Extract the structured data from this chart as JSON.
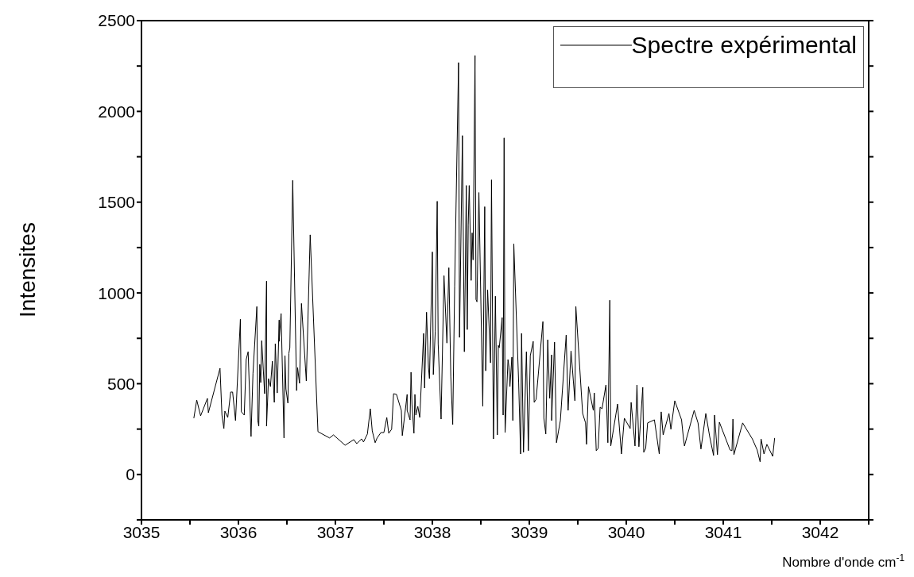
{
  "chart_data": {
    "type": "line",
    "xlabel": "Nombre d'onde cm$^{-1}$",
    "ylabel": "Intensites",
    "xlim": [
      3035,
      3042.5
    ],
    "xticks": [
      3035,
      {
        "value": 3035.5,
        "label": null
      },
      3036,
      {
        "value": 3036.5,
        "label": null
      },
      3037,
      {
        "value": 3037.5,
        "label": null
      },
      3038,
      {
        "value": 3038.5,
        "label": null
      },
      3039,
      {
        "value": 3039.5,
        "label": null
      },
      3040,
      {
        "value": 3040.5,
        "label": null
      },
      3041,
      {
        "value": 3041.5,
        "label": null
      },
      3042,
      {
        "value": 3042.5,
        "label": null
      }
    ],
    "ylim": [
      -250,
      2500
    ],
    "yticks": [
      {
        "value": -250,
        "label": null
      },
      0,
      {
        "value": 250,
        "label": null
      },
      500,
      {
        "value": 750,
        "label": null
      },
      1000,
      {
        "value": 1250,
        "label": null
      },
      1500,
      {
        "value": 1750,
        "label": null
      },
      2000,
      {
        "value": 2250,
        "label": null
      },
      2500
    ],
    "legend": "top right",
    "marker": "none",
    "line_style": "solid",
    "series": [
      {
        "name": "Spectre expérimental",
        "color": "#000000",
        "x": [
          3035.54,
          3035.57,
          3035.61,
          3035.68,
          3035.69,
          3035.81,
          3035.83,
          3035.85,
          3035.86,
          3035.89,
          3035.92,
          3035.94,
          3035.97,
          3036.02,
          3036.03,
          3036.06,
          3036.08,
          3036.1,
          3036.13,
          3036.15,
          3036.19,
          3036.2,
          3036.21,
          3036.22,
          3036.23,
          3036.24,
          3036.27,
          3036.29,
          3036.29,
          3036.31,
          3036.33,
          3036.35,
          3036.37,
          3036.38,
          3036.4,
          3036.42,
          3036.42,
          3036.44,
          3036.47,
          3036.48,
          3036.49,
          3036.51,
          3036.52,
          3036.53,
          3036.56,
          3036.6,
          3036.61,
          3036.63,
          3036.65,
          3036.7,
          3036.74,
          3036.82,
          3036.94,
          3036.98,
          3037.1,
          3037.19,
          3037.22,
          3037.27,
          3037.29,
          3037.33,
          3037.36,
          3037.38,
          3037.41,
          3037.43,
          3037.47,
          3037.5,
          3037.53,
          3037.55,
          3037.58,
          3037.6,
          3037.63,
          3037.68,
          3037.69,
          3037.74,
          3037.74,
          3037.77,
          3037.78,
          3037.79,
          3037.81,
          3037.82,
          3037.83,
          3037.85,
          3037.87,
          3037.91,
          3037.92,
          3037.94,
          3037.96,
          3037.97,
          3038,
          3038.01,
          3038.03,
          3038.05,
          3038.06,
          3038.09,
          3038.12,
          3038.15,
          3038.17,
          3038.19,
          3038.21,
          3038.23,
          3038.27,
          3038.28,
          3038.31,
          3038.33,
          3038.35,
          3038.36,
          3038.37,
          3038.38,
          3038.4,
          3038.41,
          3038.42,
          3038.44,
          3038.45,
          3038.46,
          3038.48,
          3038.52,
          3038.54,
          3038.55,
          3038.57,
          3038.6,
          3038.61,
          3038.63,
          3038.65,
          3038.67,
          3038.68,
          3038.69,
          3038.72,
          3038.73,
          3038.74,
          3038.75,
          3038.78,
          3038.79,
          3038.8,
          3038.82,
          3038.83,
          3038.84,
          3038.89,
          3038.91,
          3038.92,
          3038.94,
          3038.97,
          3038.99,
          3039.01,
          3039.04,
          3039.05,
          3039.07,
          3039.14,
          3039.15,
          3039.17,
          3039.19,
          3039.21,
          3039.23,
          3039.23,
          3039.26,
          3039.28,
          3039.32,
          3039.38,
          3039.4,
          3039.43,
          3039.47,
          3039.48,
          3039.55,
          3039.58,
          3039.59,
          3039.61,
          3039.66,
          3039.67,
          3039.69,
          3039.71,
          3039.73,
          3039.75,
          3039.79,
          3039.81,
          3039.83,
          3039.84,
          3039.91,
          3039.95,
          3039.98,
          3040.04,
          3040.05,
          3040.09,
          3040.11,
          3040.13,
          3040.17,
          3040.18,
          3040.2,
          3040.22,
          3040.29,
          3040.34,
          3040.36,
          3040.38,
          3040.44,
          3040.46,
          3040.5,
          3040.57,
          3040.59,
          3040.6,
          3040.7,
          3040.74,
          3040.77,
          3040.82,
          3040.86,
          3040.9,
          3040.91,
          3040.94,
          3040.96,
          3041.07,
          3041.09,
          3041.1,
          3041.11,
          3041.2,
          3041.3,
          3041.35,
          3041.38,
          3041.39,
          3041.42,
          3041.45,
          3041.51,
          3041.53
        ],
        "values": [
          310,
          410,
          323,
          419,
          340,
          585,
          327,
          253,
          349,
          314,
          454,
          454,
          297,
          855,
          345,
          327,
          633,
          676,
          209,
          558,
          925,
          297,
          266,
          606,
          506,
          737,
          445,
          1065,
          266,
          528,
          484,
          624,
          397,
          720,
          449,
          851,
          733,
          886,
          201,
          654,
          471,
          393,
          667,
          698,
          1620,
          462,
          589,
          502,
          942,
          515,
          1320,
          236,
          201,
          218,
          161,
          192,
          170,
          196,
          179,
          223,
          362,
          240,
          175,
          201,
          231,
          231,
          314,
          227,
          249,
          445,
          441,
          353,
          214,
          441,
          353,
          301,
          563,
          384,
          227,
          441,
          327,
          375,
          314,
          777,
          476,
          894,
          589,
          528,
          1226,
          550,
          790,
          1505,
          720,
          305,
          1095,
          724,
          1139,
          541,
          275,
          1038,
          2269,
          755,
          1867,
          676,
          1592,
          798,
          1374,
          1592,
          1069,
          1331,
          1182,
          2308,
          964,
          951,
          1553,
          375,
          1475,
          571,
          1017,
          615,
          1623,
          196,
          982,
          218,
          711,
          698,
          864,
          327,
          1854,
          231,
          633,
          593,
          484,
          646,
          297,
          1270,
          506,
          113,
          777,
          122,
          676,
          131,
          654,
          733,
          397,
          414,
          842,
          310,
          223,
          742,
          419,
          659,
          297,
          729,
          175,
          297,
          768,
          353,
          681,
          406,
          925,
          336,
          284,
          166,
          484,
          353,
          449,
          131,
          144,
          371,
          362,
          493,
          175,
          960,
          157,
          388,
          113,
          310,
          253,
          397,
          157,
          493,
          153,
          480,
          122,
          144,
          284,
          301,
          113,
          345,
          218,
          336,
          249,
          406,
          301,
          196,
          157,
          353,
          284,
          140,
          336,
          209,
          105,
          327,
          109,
          288,
          135,
          131,
          305,
          109,
          284,
          196,
          135,
          70,
          196,
          113,
          166,
          100,
          201
        ]
      }
    ]
  }
}
